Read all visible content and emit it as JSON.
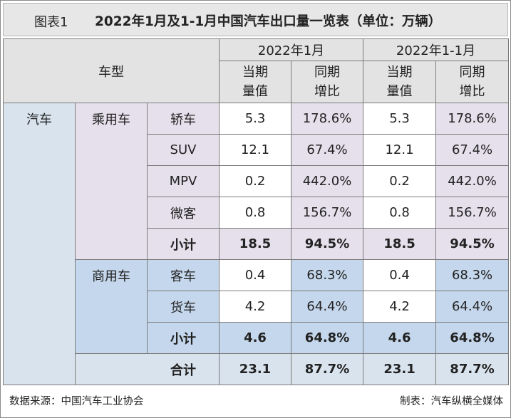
{
  "title": {
    "label": "图表1",
    "text": "2022年1月及1-1月中国汽车出口量一览表（单位：万辆）"
  },
  "header": {
    "model": "车型",
    "period_jan": "2022年1月",
    "period_cum": "2022年1-1月",
    "sub": {
      "vol_1": "当期",
      "vol_2": "量值",
      "yoy_1": "同期",
      "yoy_2": "增比"
    }
  },
  "category": {
    "auto": "汽车",
    "passenger": "乘用车",
    "commercial": "商用车"
  },
  "rows": [
    {
      "name": "轿车",
      "m_vol": "5.3",
      "m_yoy": "178.6%",
      "c_vol": "5.3",
      "c_yoy": "178.6%"
    },
    {
      "name": "SUV",
      "m_vol": "12.1",
      "m_yoy": "67.4%",
      "c_vol": "12.1",
      "c_yoy": "67.4%"
    },
    {
      "name": "MPV",
      "m_vol": "0.2",
      "m_yoy": "442.0%",
      "c_vol": "0.2",
      "c_yoy": "442.0%"
    },
    {
      "name": "微客",
      "m_vol": "0.8",
      "m_yoy": "156.7%",
      "c_vol": "0.8",
      "c_yoy": "156.7%"
    },
    {
      "name": "小计",
      "m_vol": "18.5",
      "m_yoy": "94.5%",
      "c_vol": "18.5",
      "c_yoy": "94.5%"
    },
    {
      "name": "客车",
      "m_vol": "0.4",
      "m_yoy": "68.3%",
      "c_vol": "0.4",
      "c_yoy": "68.3%"
    },
    {
      "name": "货车",
      "m_vol": "4.2",
      "m_yoy": "64.4%",
      "c_vol": "4.2",
      "c_yoy": "64.4%"
    },
    {
      "name": "小计",
      "m_vol": "4.6",
      "m_yoy": "64.8%",
      "c_vol": "4.6",
      "c_yoy": "64.8%"
    },
    {
      "name": "合计",
      "m_vol": "23.1",
      "m_yoy": "87.7%",
      "c_vol": "23.1",
      "c_yoy": "87.7%"
    }
  ],
  "footer": {
    "source": "数据来源：中国汽车工业协会",
    "credit": "制表：汽车纵横全媒体"
  },
  "colors": {
    "header_bg": "#e3e3e3",
    "auto_bg": "#d9e3ee",
    "passenger_bg": "#e6e0ec",
    "commercial_bg": "#c5d7ec"
  }
}
